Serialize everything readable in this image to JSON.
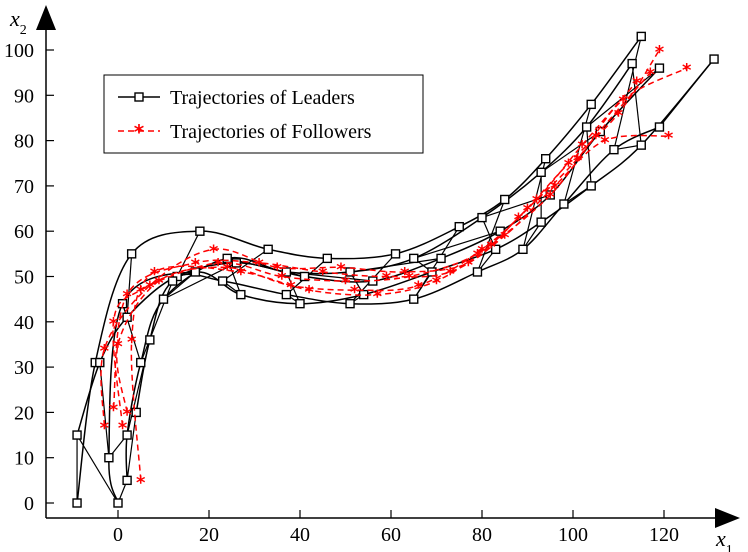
{
  "chart_data": {
    "type": "line",
    "title": "",
    "xlabel": {
      "base": "x",
      "sub": "1"
    },
    "ylabel": {
      "base": "x",
      "sub": "2"
    },
    "xlim": [
      -16,
      135
    ],
    "ylim": [
      -3,
      105
    ],
    "xticks": [
      0,
      20,
      40,
      60,
      80,
      100,
      120
    ],
    "yticks": [
      0,
      10,
      20,
      30,
      40,
      50,
      60,
      70,
      80,
      90,
      100
    ],
    "grid": false,
    "legend": {
      "position": "top-left",
      "entries": [
        "Trajectories of Leaders",
        "Trajectories of Followers"
      ]
    },
    "colors": {
      "leaders": "#000000",
      "followers": "#ff0000",
      "axes": "#000000"
    },
    "leader_series": [
      {
        "values": [
          [
            -9,
            0
          ],
          [
            -5,
            31
          ],
          [
            3,
            55
          ],
          [
            18,
            60
          ],
          [
            33,
            56
          ],
          [
            46,
            54
          ],
          [
            61,
            55
          ],
          [
            75,
            61
          ],
          [
            85,
            67
          ],
          [
            94,
            76
          ],
          [
            104,
            88
          ],
          [
            115,
            103
          ]
        ]
      },
      {
        "values": [
          [
            -9,
            15
          ],
          [
            -4,
            31
          ],
          [
            2,
            41
          ],
          [
            13,
            50
          ],
          [
            23,
            49
          ],
          [
            37,
            46
          ],
          [
            51,
            44
          ],
          [
            65,
            45
          ],
          [
            79,
            51
          ],
          [
            89,
            56
          ],
          [
            98,
            66
          ],
          [
            109,
            78
          ],
          [
            119,
            83
          ]
        ]
      },
      {
        "values": [
          [
            0,
            0
          ],
          [
            -2,
            10
          ],
          [
            1,
            44
          ],
          [
            17,
            51
          ],
          [
            27,
            46
          ],
          [
            40,
            44
          ],
          [
            54,
            46
          ],
          [
            69,
            51
          ],
          [
            83,
            56
          ],
          [
            93,
            62
          ],
          [
            104,
            70
          ],
          [
            115,
            79
          ],
          [
            131,
            98
          ]
        ]
      },
      {
        "values": [
          [
            2,
            5
          ],
          [
            2,
            15
          ],
          [
            5,
            31
          ],
          [
            10,
            45
          ],
          [
            24,
            54
          ],
          [
            37,
            51
          ],
          [
            51,
            51
          ],
          [
            65,
            54
          ],
          [
            80,
            63
          ],
          [
            93,
            73
          ],
          [
            103,
            83
          ],
          [
            113,
            97
          ]
        ]
      },
      {
        "values": [
          [
            4,
            20
          ],
          [
            7,
            36
          ],
          [
            12,
            49
          ],
          [
            26,
            53
          ],
          [
            41,
            50
          ],
          [
            56,
            49
          ],
          [
            71,
            54
          ],
          [
            84,
            60
          ],
          [
            95,
            68
          ],
          [
            106,
            82
          ],
          [
            119,
            96
          ]
        ]
      }
    ],
    "follower_series": [
      {
        "values": [
          [
            -3,
            17
          ],
          [
            -3,
            34
          ],
          [
            7,
            48
          ],
          [
            21,
            56
          ],
          [
            35,
            52
          ],
          [
            49,
            52
          ],
          [
            63,
            51
          ],
          [
            77,
            53
          ],
          [
            88,
            63
          ],
          [
            99,
            75
          ],
          [
            110,
            86
          ],
          [
            119,
            100
          ]
        ]
      },
      {
        "values": [
          [
            1,
            17
          ],
          [
            -1,
            40
          ],
          [
            5,
            47
          ],
          [
            22,
            53
          ],
          [
            36,
            50
          ],
          [
            50,
            49
          ],
          [
            64,
            50
          ],
          [
            79,
            55
          ],
          [
            90,
            65
          ],
          [
            101,
            76
          ],
          [
            111,
            89
          ],
          [
            125,
            96
          ]
        ]
      },
      {
        "values": [
          [
            2,
            20
          ],
          [
            0,
            35
          ],
          [
            9,
            49
          ],
          [
            24,
            52
          ],
          [
            38,
            48
          ],
          [
            52,
            47
          ],
          [
            66,
            48
          ],
          [
            80,
            56
          ],
          [
            92,
            67
          ],
          [
            102,
            79
          ],
          [
            114,
            93
          ]
        ]
      },
      {
        "values": [
          [
            5,
            5
          ],
          [
            3,
            36
          ],
          [
            8,
            51
          ],
          [
            27,
            51
          ],
          [
            42,
            47
          ],
          [
            57,
            46
          ],
          [
            70,
            49
          ],
          [
            82,
            57
          ],
          [
            95,
            68
          ],
          [
            105,
            81
          ],
          [
            117,
            95
          ]
        ]
      },
      {
        "values": [
          [
            -1,
            21
          ],
          [
            2,
            46
          ],
          [
            17,
            53
          ],
          [
            31,
            53
          ],
          [
            45,
            51
          ],
          [
            59,
            50
          ],
          [
            73,
            51
          ],
          [
            85,
            59
          ],
          [
            96,
            70
          ],
          [
            107,
            80
          ],
          [
            121,
            81
          ]
        ]
      }
    ]
  }
}
